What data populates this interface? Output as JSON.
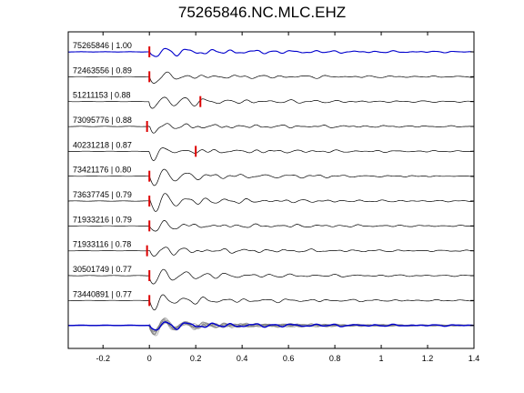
{
  "title": "75265846.NC.MLC.EHZ",
  "chart_data": {
    "type": "line",
    "title": "75265846.NC.MLC.EHZ",
    "xlabel": "",
    "ylabel": "",
    "xlim": [
      -0.35,
      1.4
    ],
    "x_ticks": [
      -0.2,
      0,
      0.2,
      0.4,
      0.6,
      0.8,
      1,
      1.2,
      1.4
    ],
    "x_tick_labels": [
      "-0.2",
      "0",
      "0.2",
      "0.4",
      "0.6",
      "0.8",
      "1",
      "1.2",
      "1.4"
    ],
    "grid": false,
    "colors": {
      "reference": "#0000cc",
      "trace": "#000000",
      "pick": "#dd0000",
      "stack": "#808080"
    },
    "traces": [
      {
        "label": "75265846 | 1.00",
        "id": "75265846",
        "cc": 1.0,
        "picks": [
          0
        ],
        "reference": true
      },
      {
        "label": "72463556 | 0.89",
        "id": "72463556",
        "cc": 0.89,
        "picks": [
          0
        ]
      },
      {
        "label": "51211153 | 0.88",
        "id": "51211153",
        "cc": 0.88,
        "picks": [
          0.22
        ]
      },
      {
        "label": "73095776 | 0.88",
        "id": "73095776",
        "cc": 0.88,
        "picks": [
          -0.01
        ]
      },
      {
        "label": "40231218 | 0.87",
        "id": "40231218",
        "cc": 0.87,
        "picks": [
          0.2
        ]
      },
      {
        "label": "73421176 | 0.80",
        "id": "73421176",
        "cc": 0.8,
        "picks": [
          0
        ]
      },
      {
        "label": "73637745 | 0.79",
        "id": "73637745",
        "cc": 0.79,
        "picks": [
          0
        ]
      },
      {
        "label": "71933216 | 0.79",
        "id": "71933216",
        "cc": 0.79,
        "picks": [
          0
        ]
      },
      {
        "label": "71933116 | 0.78",
        "id": "71933116",
        "cc": 0.78,
        "picks": [
          -0.01
        ]
      },
      {
        "label": "30501749 | 0.77",
        "id": "30501749",
        "cc": 0.77,
        "picks": [
          0
        ]
      },
      {
        "label": "73440891 | 0.77",
        "id": "73440891",
        "cc": 0.77,
        "picks": [
          0
        ]
      }
    ],
    "stack": {
      "label": "",
      "overlay_count": 11
    }
  }
}
